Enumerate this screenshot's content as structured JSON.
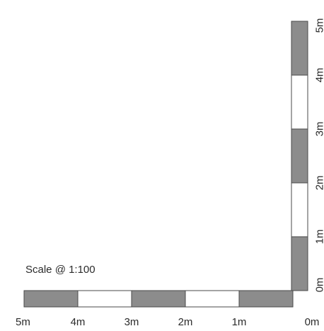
{
  "caption": "Scale @ 1:100",
  "colors": {
    "filled": "#8c8c8c",
    "empty": "#ffffff",
    "stroke": "#4a4a4a",
    "text": "#2b2b2b"
  },
  "horizontal_bar": {
    "segments": [
      "filled",
      "empty",
      "filled",
      "empty",
      "filled"
    ],
    "labels": [
      "5m",
      "4m",
      "3m",
      "2m",
      "1m",
      "0m"
    ]
  },
  "vertical_bar": {
    "segments": [
      "filled",
      "empty",
      "filled",
      "empty",
      "filled"
    ],
    "labels": [
      "0m",
      "1m",
      "2m",
      "3m",
      "4m",
      "5m"
    ]
  }
}
